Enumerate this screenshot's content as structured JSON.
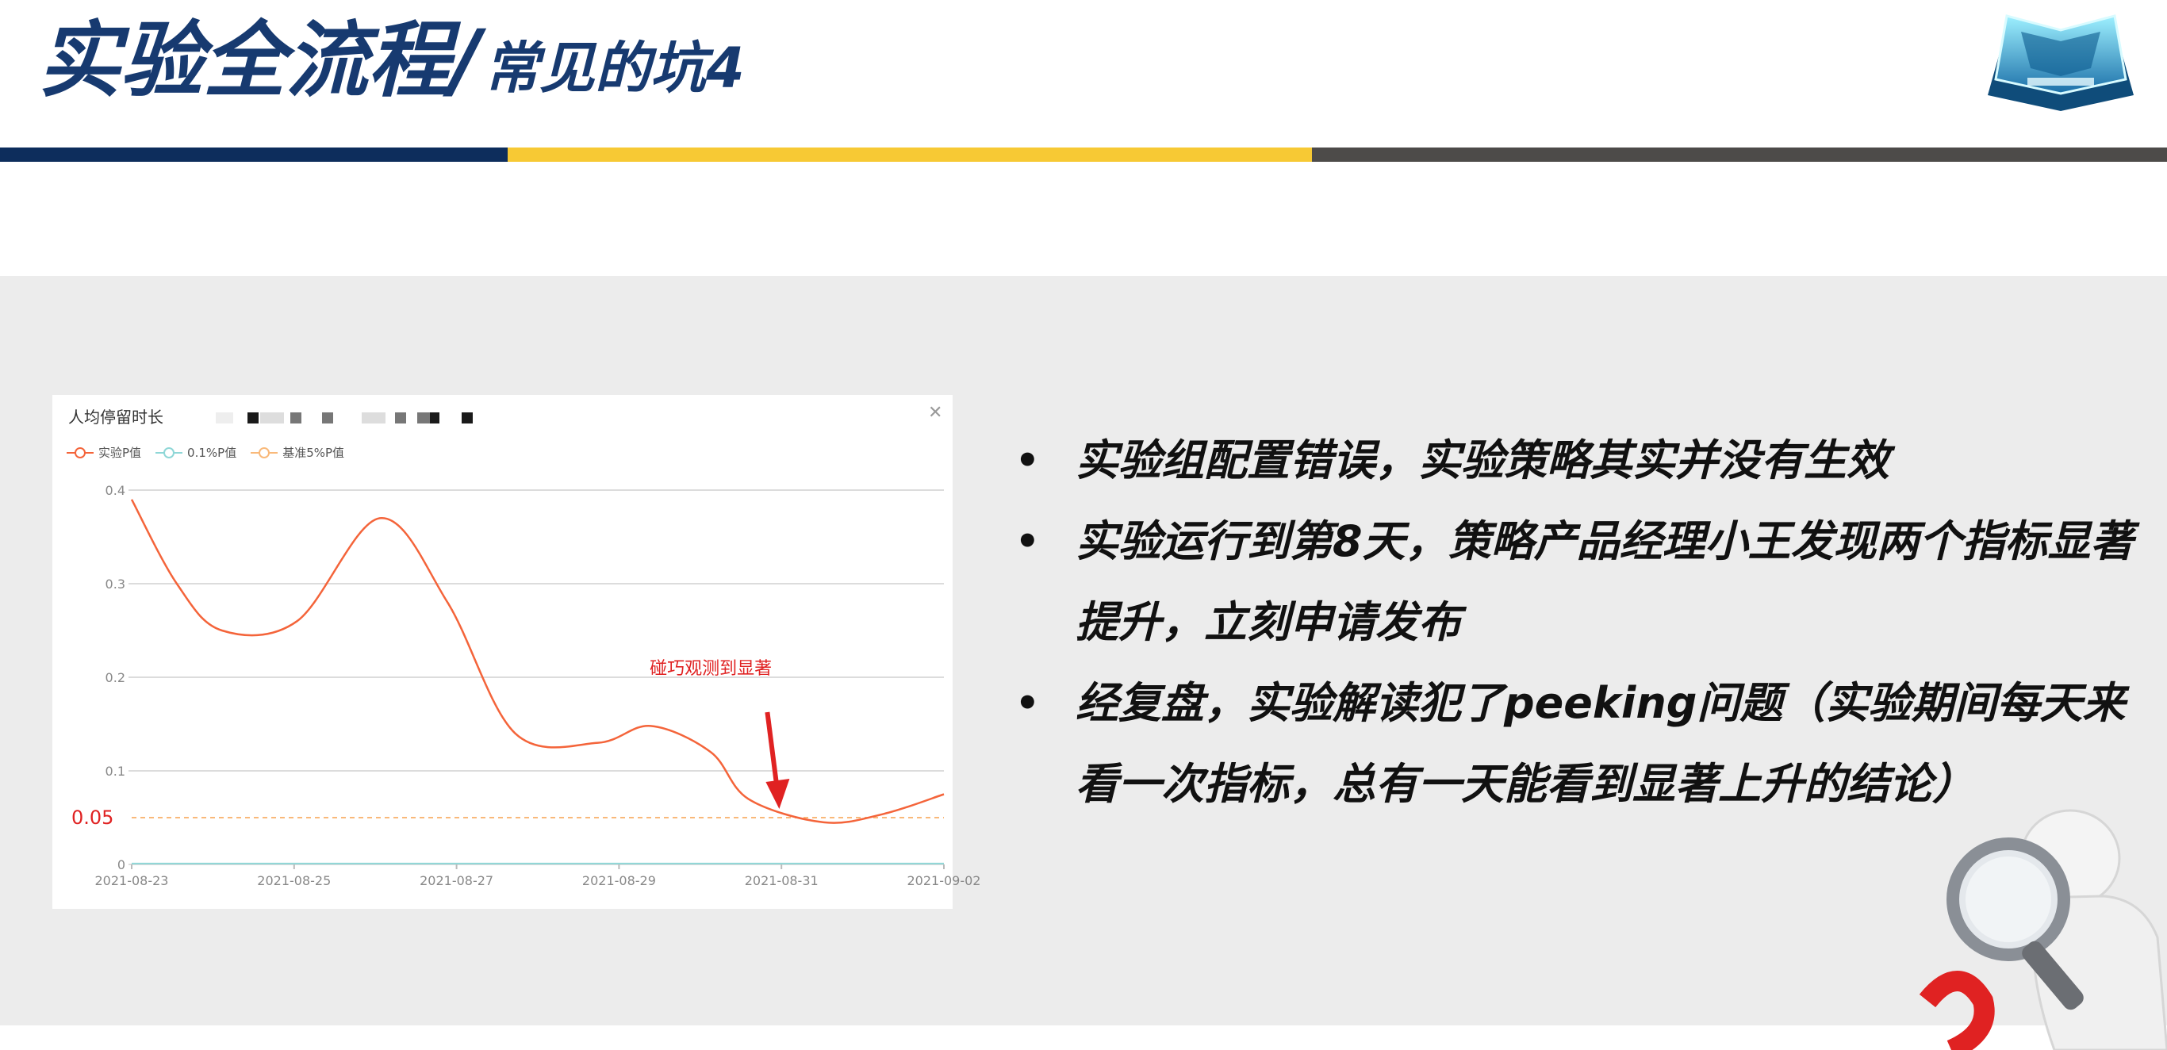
{
  "header": {
    "title_main": "实验全流程/",
    "title_sub": "常见的坑4",
    "logo_icon": "trophy-logo-icon"
  },
  "colors": {
    "title": "#173a70",
    "stripe_navy": "#0d2d5c",
    "stripe_gold": "#f7c934",
    "stripe_dark": "#4d4b49",
    "series_main": "#f4643a",
    "series_01": "#8fd7d7",
    "series_05": "#f9b97a",
    "annotation": "#e02222"
  },
  "chart_card": {
    "title": "人均停留时长",
    "close_icon": "close-icon"
  },
  "chart_data": {
    "type": "line",
    "title": "人均停留时长",
    "xlabel": "",
    "ylabel": "",
    "ylim": [
      0,
      0.4
    ],
    "y_ticks": [
      "0",
      "0.1",
      "0.2",
      "0.3",
      "0.4"
    ],
    "x_ticks": [
      "2021-08-23",
      "2021-08-25",
      "2021-08-27",
      "2021-08-29",
      "2021-08-31",
      "2021-09-02"
    ],
    "x": [
      0,
      0.6,
      1.2,
      2.2,
      3.3,
      4.2,
      5.1,
      6.2,
      6.9,
      7.7,
      8.2,
      9.2,
      10.0,
      10.8
    ],
    "series": [
      {
        "name": "实验P值",
        "values": [
          0.39,
          0.3,
          0.25,
          0.26,
          0.37,
          0.28,
          0.14,
          0.13,
          0.148,
          0.12,
          0.07,
          0.045,
          0.054,
          0.075
        ]
      },
      {
        "name": "0.1%P值",
        "values": [
          0.001,
          0.001,
          0.001,
          0.001,
          0.001,
          0.001,
          0.001,
          0.001,
          0.001,
          0.001,
          0.001,
          0.001,
          0.001,
          0.001
        ]
      },
      {
        "name": "基准5%P值",
        "values": [
          0.05,
          0.05,
          0.05,
          0.05,
          0.05,
          0.05,
          0.05,
          0.05,
          0.05,
          0.05,
          0.05,
          0.05,
          0.05,
          0.05
        ]
      }
    ],
    "reference_label": "0.05",
    "annotation": {
      "text": "碰巧观测到显著",
      "arrow_to_x": 8.6,
      "arrow_to_y": 0.061
    }
  },
  "bullets": [
    "实验组配置错误，实验策略其实并没有生效",
    "实验运行到第8天，策略产品经理小王发现两个指标显著提升，立刻申请发布",
    "经复盘，实验解读犯了peeking问题（实验期间每天来看一次指标，总有一天能看到显著上升的结论）"
  ],
  "decor": {
    "mascot_icon": "magnifier-mascot-icon"
  }
}
